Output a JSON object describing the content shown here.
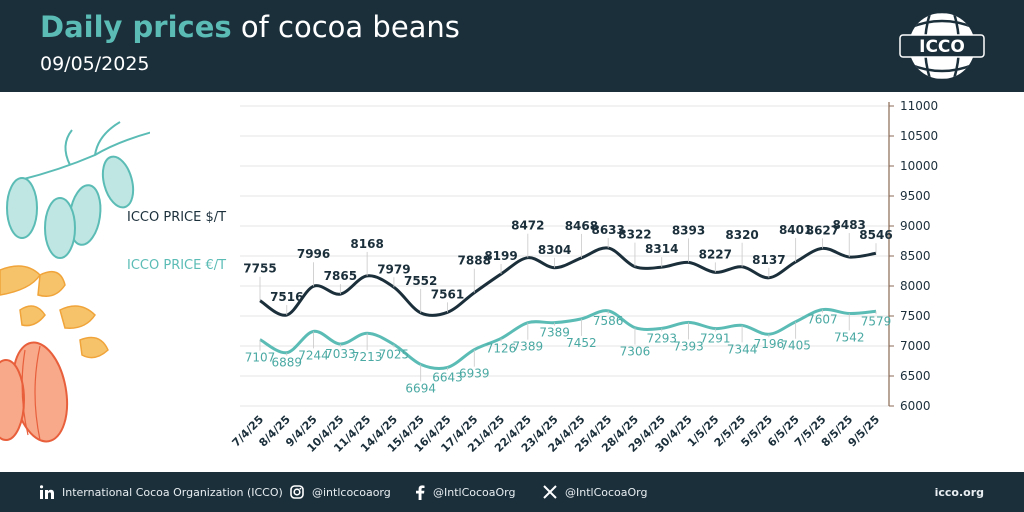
{
  "header": {
    "title_highlight": "Daily prices",
    "title_rest": " of cocoa beans",
    "date": "09/05/2025",
    "logo_text": "ICCO"
  },
  "legend": {
    "usd_label": "ICCO PRICE $/T",
    "eur_label": "ICCO PRICE €/T"
  },
  "chart_data": {
    "type": "line",
    "title": "Daily prices of cocoa beans",
    "xlabel": "",
    "ylabel": "",
    "categories": [
      "7/4/25",
      "8/4/25",
      "9/4/25",
      "10/4/25",
      "11/4/25",
      "14/4/25",
      "15/4/25",
      "16/4/25",
      "17/4/25",
      "21/4/25",
      "22/4/25",
      "23/4/25",
      "24/4/25",
      "25/4/25",
      "28/4/25",
      "29/4/25",
      "30/4/25",
      "1/5/25",
      "2/5/25",
      "5/5/25",
      "6/5/25",
      "7/5/25",
      "8/5/25",
      "9/5/25"
    ],
    "series": [
      {
        "name": "ICCO PRICE $/T",
        "color": "#1b2f3b",
        "values": [
          7755,
          7516,
          7996,
          7865,
          8168,
          7979,
          7552,
          7561,
          7888,
          8199,
          8472,
          8304,
          8468,
          8633,
          8322,
          8314,
          8393,
          8227,
          8320,
          8137,
          8401,
          8627,
          8483,
          8546
        ]
      },
      {
        "name": "ICCO PRICE €/T",
        "color": "#5bbcb6",
        "values": [
          7107,
          6889,
          7244,
          7033,
          7213,
          7025,
          6694,
          6643,
          6939,
          7126,
          7389,
          7389,
          7452,
          7586,
          7306,
          7293,
          7393,
          7291,
          7344,
          7196,
          7405,
          7607,
          7542,
          7579
        ]
      }
    ],
    "ylim": [
      6000,
      11000
    ],
    "yticks": [
      6000,
      6500,
      7000,
      7500,
      8000,
      8500,
      9000,
      9500,
      10000,
      10500,
      11000
    ],
    "y_axis_side": "right",
    "grid": "horizontal",
    "legend": "left"
  },
  "footer": {
    "linkedin": "International Cocoa Organization (ICCO)",
    "instagram": "@intlcocoaorg",
    "facebook": "@IntlCocoaOrg",
    "x": "@IntlCocoaOrg",
    "site": "icco.org"
  },
  "colors": {
    "navy": "#1b2f3b",
    "teal": "#5bbcb6",
    "grid": "#e6e6e6",
    "axis": "#8a6a55"
  },
  "icons": [
    "linkedin-icon",
    "instagram-icon",
    "facebook-icon",
    "x-icon",
    "icco-globe-logo"
  ]
}
